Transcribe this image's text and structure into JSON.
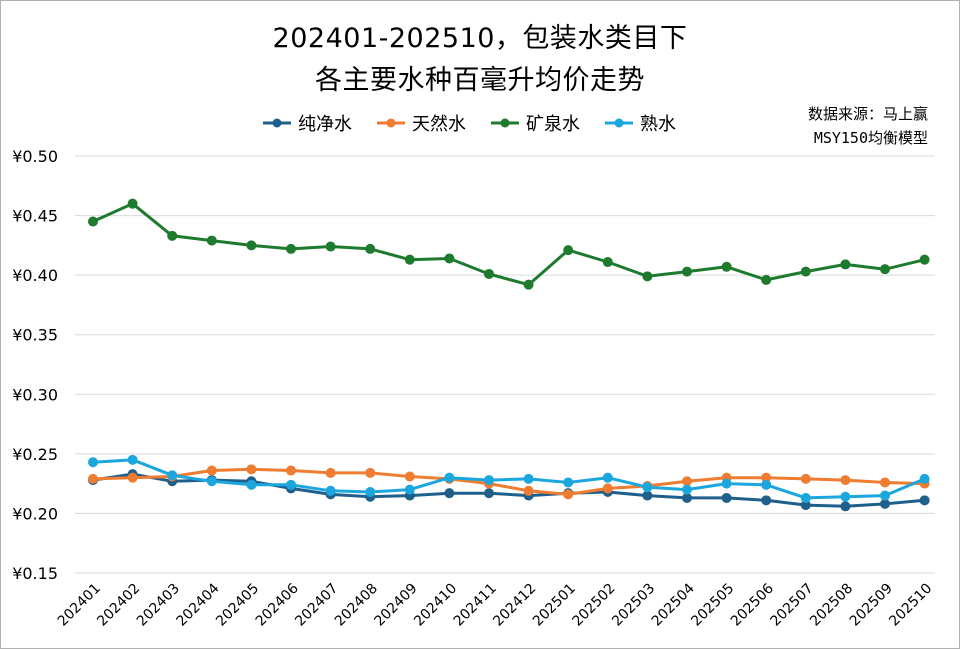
{
  "chart_data": {
    "type": "line",
    "title_line1": "202401-202510，包装水类目下",
    "title_line2": "各主要水种百毫升均价走势",
    "source_line1": "数据来源：马上赢",
    "source_line2": "MSY150均衡模型",
    "categories": [
      "202401",
      "202402",
      "202403",
      "202404",
      "202405",
      "202406",
      "202407",
      "202408",
      "202409",
      "202410",
      "202411",
      "202412",
      "202501",
      "202502",
      "202503",
      "202504",
      "202505",
      "202506",
      "202507",
      "202508",
      "202509",
      "202510"
    ],
    "y_ticks": [
      "¥0.50",
      "¥0.45",
      "¥0.40",
      "¥0.35",
      "¥0.30",
      "¥0.25",
      "¥0.20",
      "¥0.15"
    ],
    "ylim": [
      0.15,
      0.5
    ],
    "grid": true,
    "legend_position": "top",
    "series": [
      {
        "name": "纯净水",
        "color": "#1f5f8b",
        "values": [
          0.228,
          0.233,
          0.227,
          0.228,
          0.227,
          0.221,
          0.216,
          0.214,
          0.215,
          0.217,
          0.217,
          0.215,
          0.217,
          0.218,
          0.215,
          0.213,
          0.213,
          0.211,
          0.207,
          0.206,
          0.208,
          0.211
        ]
      },
      {
        "name": "天然水",
        "color": "#ee7d31",
        "values": [
          0.229,
          0.23,
          0.231,
          0.236,
          0.237,
          0.236,
          0.234,
          0.234,
          0.231,
          0.229,
          0.225,
          0.219,
          0.216,
          0.221,
          0.223,
          0.227,
          0.23,
          0.23,
          0.229,
          0.228,
          0.226,
          0.225
        ]
      },
      {
        "name": "矿泉水",
        "color": "#1e7b2e",
        "values": [
          0.445,
          0.46,
          0.433,
          0.429,
          0.425,
          0.422,
          0.424,
          0.422,
          0.413,
          0.414,
          0.401,
          0.392,
          0.421,
          0.411,
          0.399,
          0.403,
          0.407,
          0.396,
          0.403,
          0.409,
          0.405,
          0.413
        ]
      },
      {
        "name": "熟水",
        "color": "#1ca6de",
        "values": [
          0.243,
          0.245,
          0.232,
          0.227,
          0.224,
          0.224,
          0.219,
          0.218,
          0.22,
          0.23,
          0.228,
          0.229,
          0.226,
          0.23,
          0.222,
          0.22,
          0.225,
          0.224,
          0.213,
          0.214,
          0.215,
          0.229
        ]
      }
    ]
  }
}
